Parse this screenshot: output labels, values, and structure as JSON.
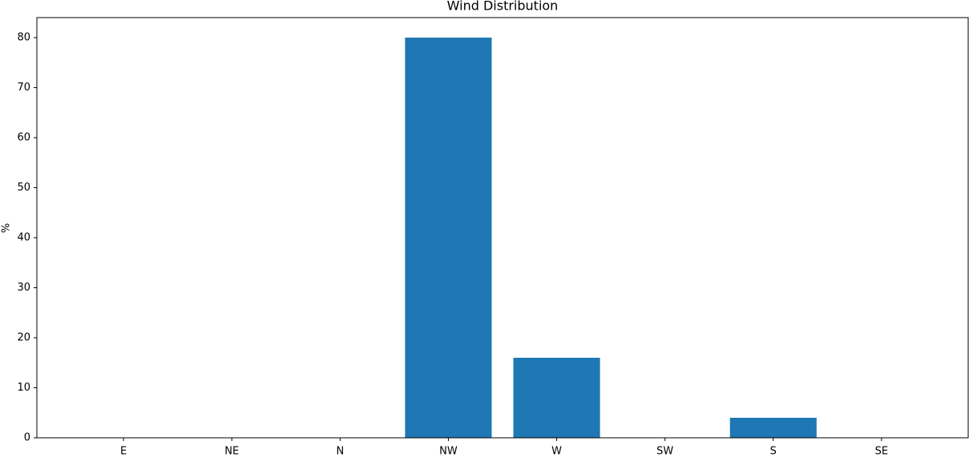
{
  "chart_data": {
    "type": "bar",
    "title": "Wind Distribution",
    "y_label": "%",
    "categories": [
      "E",
      "NE",
      "N",
      "NW",
      "W",
      "SW",
      "S",
      "SE"
    ],
    "values": [
      0,
      0,
      0,
      80,
      16,
      0,
      4,
      0
    ],
    "color": "#1f77b4",
    "ylim": [
      0,
      84
    ],
    "yticks": [
      0,
      10,
      20,
      30,
      40,
      50,
      60,
      70,
      80
    ],
    "grid": false
  }
}
